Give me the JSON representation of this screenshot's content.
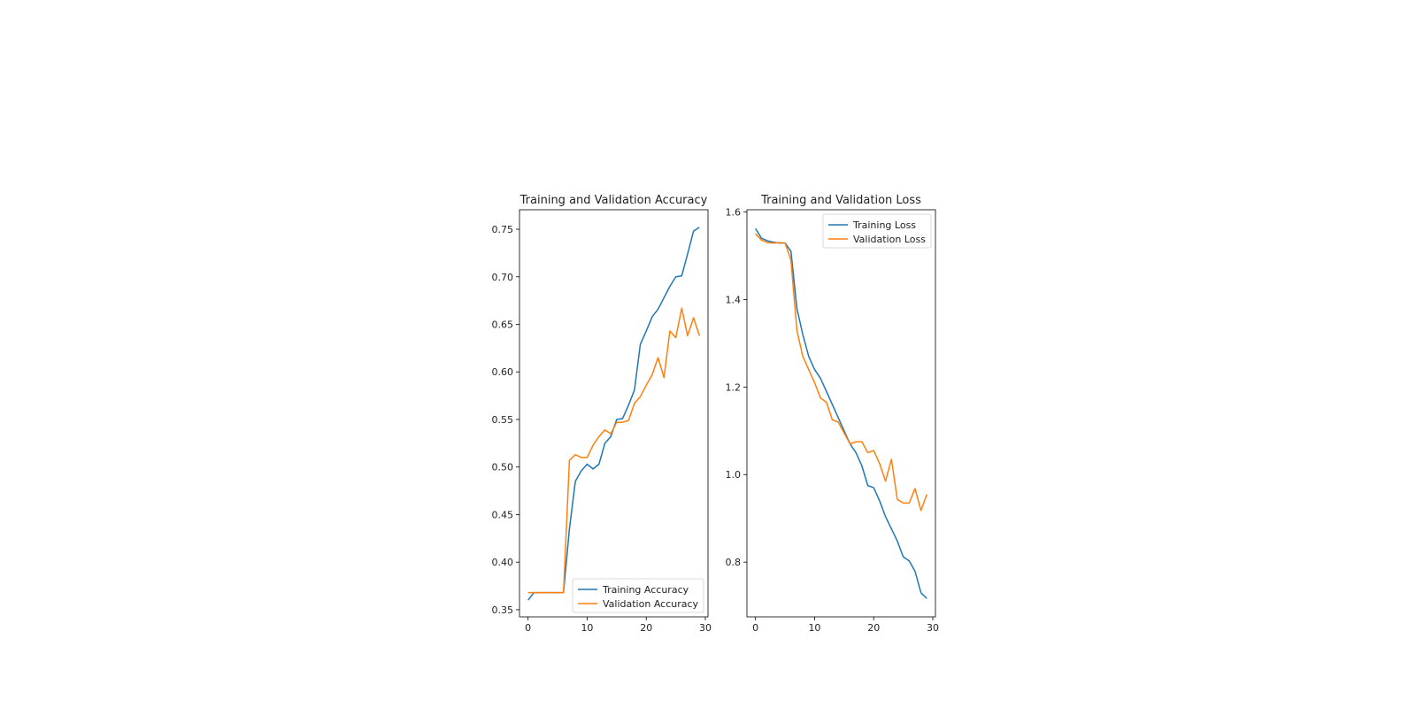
{
  "chart_data": [
    {
      "type": "line",
      "title": "Training and Validation Accuracy",
      "xlabel": "",
      "ylabel": "",
      "xlim": [
        -1.45,
        30.45
      ],
      "ylim": [
        0.3425,
        0.7705
      ],
      "xticks": [
        0,
        10,
        20,
        30
      ],
      "xtick_labels": [
        "0",
        "10",
        "20",
        "30"
      ],
      "yticks": [
        0.35,
        0.4,
        0.45,
        0.5,
        0.55,
        0.6,
        0.65,
        0.7,
        0.75
      ],
      "ytick_labels": [
        "0.35",
        "0.40",
        "0.45",
        "0.50",
        "0.55",
        "0.60",
        "0.65",
        "0.70",
        "0.75"
      ],
      "grid": false,
      "legend_position": "lower-right",
      "x": [
        0,
        1,
        2,
        3,
        4,
        5,
        6,
        7,
        8,
        9,
        10,
        11,
        12,
        13,
        14,
        15,
        16,
        17,
        18,
        19,
        20,
        21,
        22,
        23,
        24,
        25,
        26,
        27,
        28,
        29
      ],
      "series": [
        {
          "name": "Training Accuracy",
          "color": "#1f77b4",
          "values": [
            0.36,
            0.368,
            0.368,
            0.368,
            0.368,
            0.368,
            0.368,
            0.435,
            0.485,
            0.496,
            0.503,
            0.498,
            0.503,
            0.525,
            0.532,
            0.55,
            0.551,
            0.565,
            0.581,
            0.629,
            0.643,
            0.658,
            0.666,
            0.678,
            0.69,
            0.7,
            0.701,
            0.724,
            0.748,
            0.752
          ]
        },
        {
          "name": "Validation Accuracy",
          "color": "#ff7f0e",
          "values": [
            0.368,
            0.368,
            0.368,
            0.368,
            0.368,
            0.368,
            0.368,
            0.507,
            0.513,
            0.51,
            0.51,
            0.523,
            0.532,
            0.539,
            0.535,
            0.547,
            0.547,
            0.549,
            0.567,
            0.574,
            0.586,
            0.597,
            0.615,
            0.594,
            0.643,
            0.636,
            0.667,
            0.638,
            0.657,
            0.638
          ]
        }
      ]
    },
    {
      "type": "line",
      "title": "Training and Validation Loss",
      "xlabel": "",
      "ylabel": "",
      "xlim": [
        -1.45,
        30.45
      ],
      "ylim": [
        0.675,
        1.605
      ],
      "xticks": [
        0,
        10,
        20,
        30
      ],
      "xtick_labels": [
        "0",
        "10",
        "20",
        "30"
      ],
      "yticks": [
        0.8,
        1.0,
        1.2,
        1.4,
        1.6
      ],
      "ytick_labels": [
        "0.8",
        "1.0",
        "1.2",
        "1.4",
        "1.6"
      ],
      "grid": false,
      "legend_position": "upper-right",
      "x": [
        0,
        1,
        2,
        3,
        4,
        5,
        6,
        7,
        8,
        9,
        10,
        11,
        12,
        13,
        14,
        15,
        16,
        17,
        18,
        19,
        20,
        21,
        22,
        23,
        24,
        25,
        26,
        27,
        28,
        29
      ],
      "series": [
        {
          "name": "Training Loss",
          "color": "#1f77b4",
          "values": [
            1.562,
            1.54,
            1.534,
            1.531,
            1.529,
            1.529,
            1.51,
            1.38,
            1.32,
            1.27,
            1.24,
            1.22,
            1.19,
            1.16,
            1.13,
            1.1,
            1.07,
            1.05,
            1.02,
            0.975,
            0.97,
            0.94,
            0.904,
            0.876,
            0.848,
            0.812,
            0.803,
            0.779,
            0.73,
            0.717
          ]
        },
        {
          "name": "Validation Loss",
          "color": "#ff7f0e",
          "values": [
            1.55,
            1.536,
            1.53,
            1.529,
            1.53,
            1.529,
            1.49,
            1.33,
            1.27,
            1.24,
            1.21,
            1.175,
            1.165,
            1.125,
            1.12,
            1.095,
            1.07,
            1.075,
            1.075,
            1.05,
            1.055,
            1.025,
            0.985,
            1.035,
            0.943,
            0.935,
            0.935,
            0.968,
            0.918,
            0.955
          ]
        }
      ]
    }
  ]
}
